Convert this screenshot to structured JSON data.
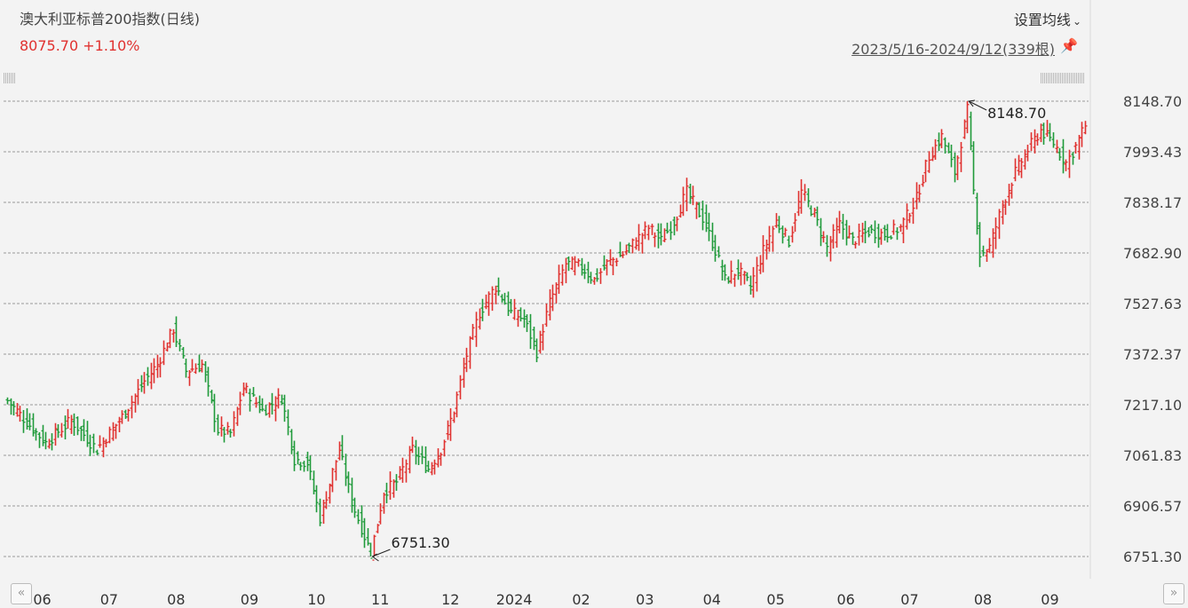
{
  "header": {
    "title": "澳大利亚标普200指数(日线)",
    "price_text": "8075.70 +1.10%",
    "settings_label": "设置均线",
    "range_label": "2023/5/16-2024/9/12(339根)"
  },
  "colors": {
    "up": "#e0312f",
    "down": "#1f9a3a",
    "grid": "#9a9a9a"
  },
  "icons": {
    "pin": "pin-icon",
    "settings": "chevron-down-icon",
    "scroll_left": "double-chevron-left-icon",
    "scroll_right": "double-chevron-right-icon"
  },
  "chart_data": {
    "type": "ohlc",
    "title": "澳大利亚标普200指数(日线)",
    "ylim": [
      6751.3,
      8148.7
    ],
    "y_ticks": [
      "8148.70",
      "7993.43",
      "7838.17",
      "7682.90",
      "7527.63",
      "7372.37",
      "7217.10",
      "7061.83",
      "6906.57",
      "6751.30"
    ],
    "x_ticks": [
      {
        "label": "06",
        "index": 11
      },
      {
        "label": "07",
        "index": 32
      },
      {
        "label": "08",
        "index": 53
      },
      {
        "label": "09",
        "index": 76
      },
      {
        "label": "10",
        "index": 97
      },
      {
        "label": "11",
        "index": 117
      },
      {
        "label": "12",
        "index": 139
      },
      {
        "label": "2024",
        "index": 159
      },
      {
        "label": "02",
        "index": 180
      },
      {
        "label": "03",
        "index": 200
      },
      {
        "label": "04",
        "index": 221
      },
      {
        "label": "05",
        "index": 241
      },
      {
        "label": "06",
        "index": 263
      },
      {
        "label": "07",
        "index": 283
      },
      {
        "label": "08",
        "index": 306
      },
      {
        "label": "09",
        "index": 327
      }
    ],
    "count": 339,
    "annotations": [
      {
        "text": "8148.70",
        "kind": "high",
        "index": 301
      },
      {
        "text": "6751.30",
        "kind": "low",
        "index": 114
      }
    ],
    "key_closes": [
      {
        "index": 0,
        "value": 7230
      },
      {
        "index": 12,
        "value": 7100
      },
      {
        "index": 20,
        "value": 7170
      },
      {
        "index": 28,
        "value": 7080
      },
      {
        "index": 36,
        "value": 7180
      },
      {
        "index": 43,
        "value": 7290
      },
      {
        "index": 47,
        "value": 7340
      },
      {
        "index": 52,
        "value": 7450
      },
      {
        "index": 56,
        "value": 7320
      },
      {
        "index": 61,
        "value": 7340
      },
      {
        "index": 66,
        "value": 7140
      },
      {
        "index": 70,
        "value": 7130
      },
      {
        "index": 74,
        "value": 7270
      },
      {
        "index": 80,
        "value": 7200
      },
      {
        "index": 86,
        "value": 7240
      },
      {
        "index": 90,
        "value": 7050
      },
      {
        "index": 94,
        "value": 7040
      },
      {
        "index": 98,
        "value": 6870
      },
      {
        "index": 104,
        "value": 7080
      },
      {
        "index": 108,
        "value": 6920
      },
      {
        "index": 114,
        "value": 6760
      },
      {
        "index": 118,
        "value": 6950
      },
      {
        "index": 122,
        "value": 6980
      },
      {
        "index": 127,
        "value": 7080
      },
      {
        "index": 132,
        "value": 7020
      },
      {
        "index": 136,
        "value": 7080
      },
      {
        "index": 140,
        "value": 7200
      },
      {
        "index": 144,
        "value": 7370
      },
      {
        "index": 148,
        "value": 7500
      },
      {
        "index": 153,
        "value": 7580
      },
      {
        "index": 158,
        "value": 7500
      },
      {
        "index": 162,
        "value": 7480
      },
      {
        "index": 166,
        "value": 7380
      },
      {
        "index": 170,
        "value": 7530
      },
      {
        "index": 175,
        "value": 7650
      },
      {
        "index": 180,
        "value": 7640
      },
      {
        "index": 184,
        "value": 7600
      },
      {
        "index": 188,
        "value": 7650
      },
      {
        "index": 193,
        "value": 7680
      },
      {
        "index": 197,
        "value": 7720
      },
      {
        "index": 201,
        "value": 7760
      },
      {
        "index": 205,
        "value": 7720
      },
      {
        "index": 209,
        "value": 7780
      },
      {
        "index": 213,
        "value": 7870
      },
      {
        "index": 218,
        "value": 7790
      },
      {
        "index": 222,
        "value": 7690
      },
      {
        "index": 225,
        "value": 7600
      },
      {
        "index": 229,
        "value": 7630
      },
      {
        "index": 233,
        "value": 7580
      },
      {
        "index": 237,
        "value": 7690
      },
      {
        "index": 241,
        "value": 7780
      },
      {
        "index": 245,
        "value": 7720
      },
      {
        "index": 249,
        "value": 7870
      },
      {
        "index": 253,
        "value": 7800
      },
      {
        "index": 257,
        "value": 7700
      },
      {
        "index": 261,
        "value": 7770
      },
      {
        "index": 265,
        "value": 7720
      },
      {
        "index": 270,
        "value": 7750
      },
      {
        "index": 275,
        "value": 7740
      },
      {
        "index": 280,
        "value": 7760
      },
      {
        "index": 285,
        "value": 7850
      },
      {
        "index": 289,
        "value": 7980
      },
      {
        "index": 293,
        "value": 8040
      },
      {
        "index": 297,
        "value": 7930
      },
      {
        "index": 301,
        "value": 8120
      },
      {
        "index": 303,
        "value": 7870
      },
      {
        "index": 305,
        "value": 7680
      },
      {
        "index": 308,
        "value": 7700
      },
      {
        "index": 312,
        "value": 7830
      },
      {
        "index": 316,
        "value": 7930
      },
      {
        "index": 320,
        "value": 8000
      },
      {
        "index": 324,
        "value": 8060
      },
      {
        "index": 328,
        "value": 8020
      },
      {
        "index": 332,
        "value": 7960
      },
      {
        "index": 335,
        "value": 8010
      },
      {
        "index": 338,
        "value": 8075.7
      }
    ]
  }
}
